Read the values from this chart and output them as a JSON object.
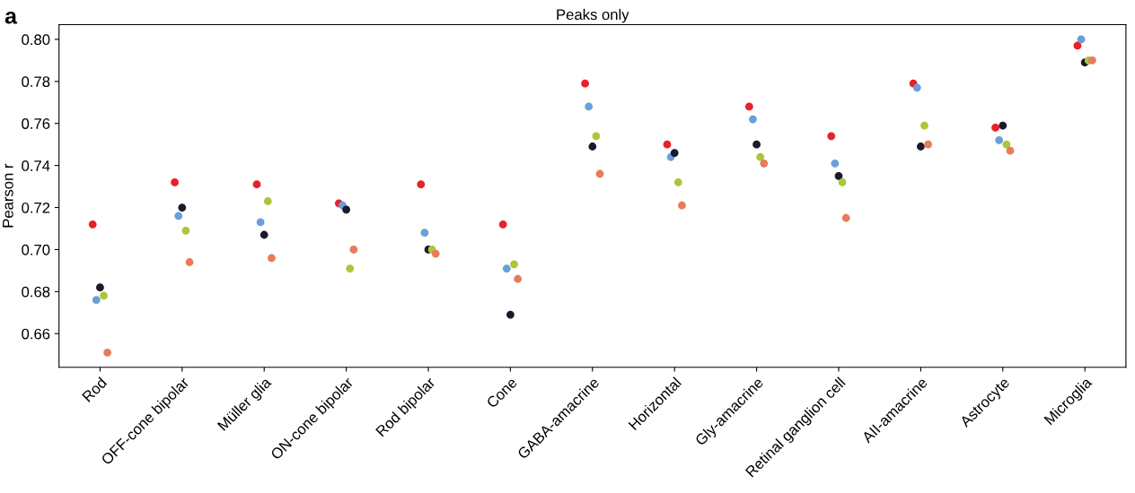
{
  "chart_data": {
    "type": "scatter",
    "title": "Peaks only",
    "ylabel": "Pearson r",
    "annotations": [
      "a"
    ],
    "categories": [
      "Rod",
      "OFF-cone bipolar",
      "Müller glia",
      "ON-cone bipolar",
      "Rod bipolar",
      "Cone",
      "GABA-amacrine",
      "Horizontal",
      "Gly-amacrine",
      "Retinal ganglion cell",
      "AII-amacrine",
      "Astrocyte",
      "Microglia"
    ],
    "series": [
      {
        "color": "#e8202a",
        "values": [
          0.712,
          0.732,
          0.731,
          0.722,
          0.731,
          0.712,
          0.779,
          0.75,
          0.768,
          0.754,
          0.779,
          0.758,
          0.797
        ]
      },
      {
        "color": "#6a9fd8",
        "values": [
          0.676,
          0.716,
          0.713,
          0.721,
          0.708,
          0.691,
          0.768,
          0.744,
          0.762,
          0.741,
          0.777,
          0.752,
          0.8
        ]
      },
      {
        "color": "#1a1a2e",
        "values": [
          0.682,
          0.72,
          0.707,
          0.719,
          0.7,
          0.669,
          0.749,
          0.746,
          0.75,
          0.735,
          0.749,
          0.759,
          0.789
        ]
      },
      {
        "color": "#a8c83a",
        "values": [
          0.678,
          0.709,
          0.723,
          0.691,
          0.7,
          0.693,
          0.754,
          0.732,
          0.744,
          0.732,
          0.759,
          0.75,
          0.79
        ]
      },
      {
        "color": "#e87c5a",
        "values": [
          0.651,
          0.694,
          0.696,
          0.7,
          0.698,
          0.686,
          0.736,
          0.721,
          0.741,
          0.715,
          0.75,
          0.747,
          0.79
        ]
      }
    ],
    "ylim": [
      0.644,
      0.807
    ],
    "yticks": [
      0.66,
      0.68,
      {
        "value": 0.7,
        "label": "0.70"
      },
      0.72,
      0.74,
      0.76,
      0.78,
      {
        "value": 0.8,
        "label": "0.80"
      }
    ],
    "grid": false,
    "legend": false,
    "marker": "circle"
  }
}
